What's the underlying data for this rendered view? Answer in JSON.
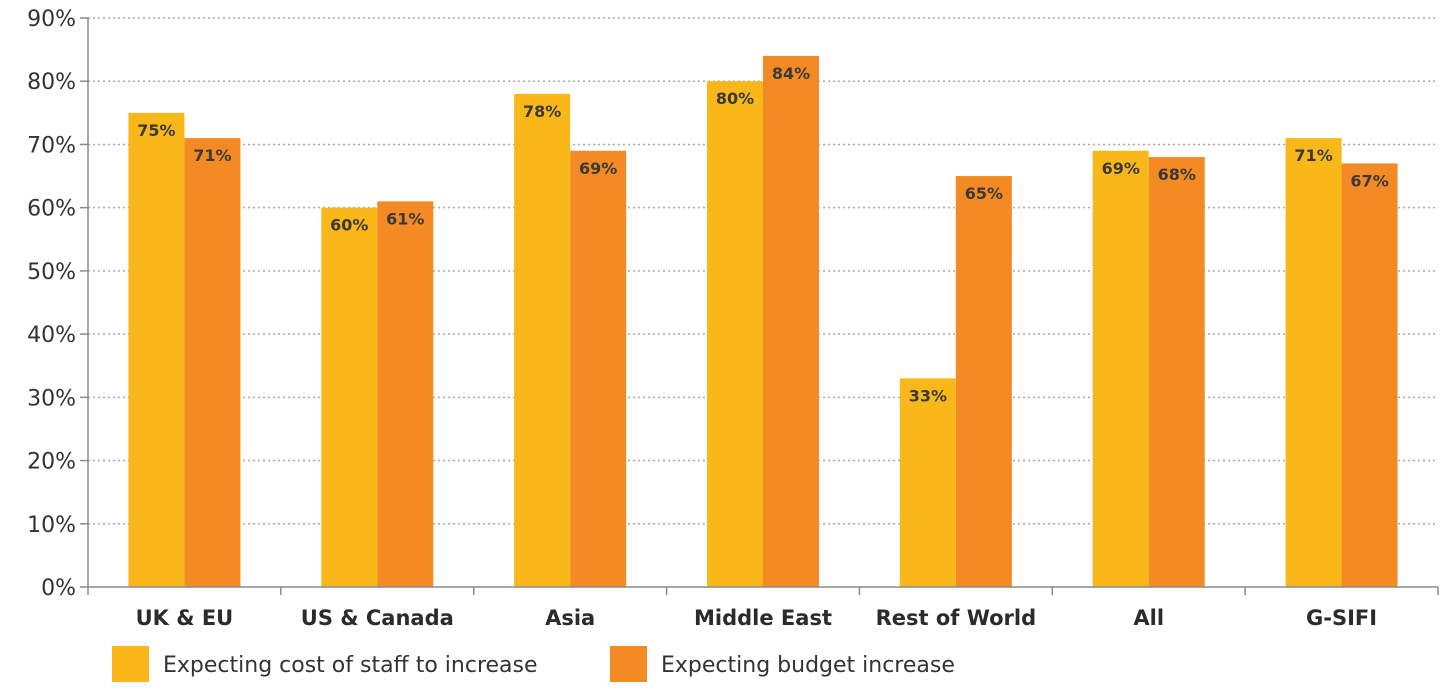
{
  "chart_data": {
    "type": "bar",
    "categories": [
      "UK & EU",
      "US & Canada",
      "Asia",
      "Middle East",
      "Rest of World",
      "All",
      "G-SIFI"
    ],
    "series": [
      {
        "name": "Expecting cost of staff to increase",
        "color": "#F9B71A",
        "values": [
          75,
          60,
          78,
          80,
          33,
          69,
          71
        ],
        "labels": [
          "75%",
          "60%",
          "78%",
          "80%",
          "33%",
          "69%",
          "71%"
        ]
      },
      {
        "name": "Expecting budget increase",
        "color": "#F48A23",
        "values": [
          71,
          61,
          69,
          84,
          65,
          68,
          67
        ],
        "labels": [
          "71%",
          "61%",
          "69%",
          "84%",
          "65%",
          "68%",
          "67%"
        ]
      }
    ],
    "ylim": [
      0,
      90
    ],
    "yticks": [
      0,
      10,
      20,
      30,
      40,
      50,
      60,
      70,
      80,
      90
    ],
    "ytick_labels": [
      "0%",
      "10%",
      "20%",
      "30%",
      "40%",
      "50%",
      "60%",
      "70%",
      "80%",
      "90%"
    ],
    "grid": true,
    "legend_position": "bottom-left",
    "title": "",
    "xlabel": "",
    "ylabel": ""
  }
}
